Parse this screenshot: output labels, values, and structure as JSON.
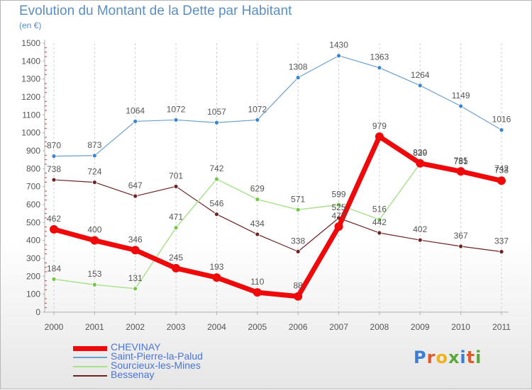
{
  "title": "Evolution du Montant de la Dette par Habitant",
  "subtitle": "(en €)",
  "logo": {
    "text": "Proxiti",
    "colors": [
      "#3b7fd4",
      "#e05a2b",
      "#f2b21c",
      "#5aa83c",
      "#3b7fd4",
      "#e05a2b",
      "#5aa83c"
    ]
  },
  "chart_data": {
    "type": "line",
    "title": "Evolution du Montant de la Dette par Habitant",
    "subtitle": "(en €)",
    "x": [
      "2000",
      "2001",
      "2002",
      "2003",
      "2004",
      "2005",
      "2006",
      "2007",
      "2008",
      "2009",
      "2010",
      "2011"
    ],
    "ylim": [
      0,
      1500
    ],
    "yticks": [
      0,
      100,
      200,
      300,
      400,
      500,
      600,
      700,
      800,
      900,
      1000,
      1100,
      1200,
      1300,
      1400,
      1500
    ],
    "grid": "vertical",
    "legend": "bottom-left",
    "series": [
      {
        "name": "Saint-Pierre-la-Palud",
        "color": "#6a9fd0",
        "point_color": "#3a86cc",
        "width": 1.2,
        "radius": 3,
        "values": [
          870,
          873,
          1064,
          1072,
          1057,
          1072,
          1308,
          1430,
          1363,
          1264,
          1149,
          1016
        ]
      },
      {
        "name": "Bessenay",
        "color": "#6e2222",
        "point_color": "#6e2222",
        "width": 1.2,
        "radius": 3,
        "values": [
          738,
          724,
          647,
          701,
          546,
          434,
          338,
          525,
          442,
          402,
          367,
          337
        ]
      },
      {
        "name": "Sourcieux-les-Mines",
        "color": "#a6e08a",
        "point_color": "#73c646",
        "width": 1.4,
        "radius": 3,
        "values": [
          184,
          153,
          131,
          471,
          742,
          629,
          571,
          599,
          516,
          829,
          781,
          742
        ]
      },
      {
        "name": "CHEVINAY",
        "color": "#ee0a0a",
        "point_color": "#ee0a0a",
        "width": 7,
        "radius": 6,
        "values": [
          462,
          400,
          346,
          245,
          193,
          110,
          88,
          477,
          979,
          830,
          785,
          733
        ]
      }
    ],
    "legend_order": [
      "CHEVINAY",
      "Saint-Pierre-la-Palud",
      "Sourcieux-les-Mines",
      "Bessenay"
    ]
  }
}
